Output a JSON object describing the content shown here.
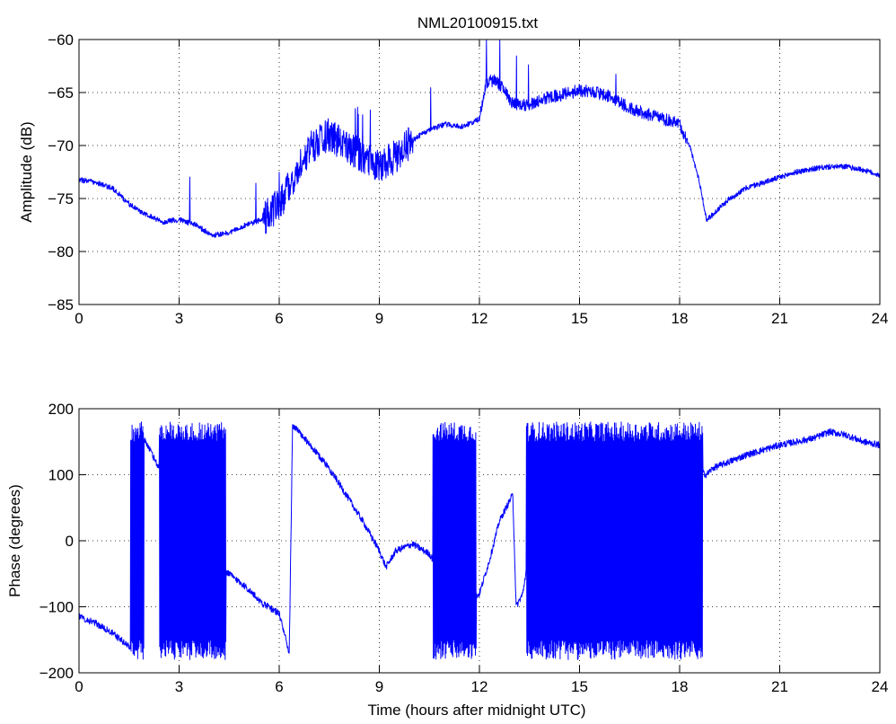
{
  "title": "NML20100915.txt",
  "colors": {
    "trace": "#0000ff",
    "axes": "#000000",
    "background": "#ffffff"
  },
  "chart_data": [
    {
      "type": "line",
      "title": "NML20100915.txt",
      "xlabel": "",
      "ylabel": "Amplitude (dB)",
      "xlim": [
        0,
        24
      ],
      "ylim": [
        -85,
        -60
      ],
      "xticks": [
        0,
        3,
        6,
        9,
        12,
        15,
        18,
        21,
        24
      ],
      "yticks": [
        -85,
        -80,
        -75,
        -70,
        -65,
        -60
      ],
      "xtick_labels": [
        "0",
        "3",
        "6",
        "9",
        "12",
        "15",
        "18",
        "21",
        "24"
      ],
      "ytick_labels": [
        "−85",
        "−80",
        "−75",
        "−70",
        "−65",
        "−60"
      ],
      "grid": true,
      "series": [
        {
          "color": "#0000ff",
          "x": [
            0,
            0.5,
            1,
            1.5,
            2,
            2.5,
            3,
            3.5,
            4,
            4.5,
            5,
            5.5,
            6,
            6.2,
            6.5,
            7,
            7.5,
            8,
            8.5,
            9,
            9.5,
            10,
            10.5,
            11,
            11.5,
            12,
            12.2,
            12.5,
            13,
            13.5,
            14,
            14.5,
            15,
            15.5,
            16,
            16.5,
            17,
            17.5,
            18,
            18.3,
            18.6,
            18.8,
            19,
            19.5,
            20,
            20.5,
            21,
            21.5,
            22,
            22.5,
            23,
            23.5,
            24
          ],
          "y": [
            -73.2,
            -73.5,
            -74,
            -75.5,
            -76.5,
            -77.2,
            -77,
            -77.5,
            -78.5,
            -78.2,
            -77.5,
            -77,
            -75.5,
            -74.5,
            -72.5,
            -70,
            -69,
            -70,
            -71,
            -72,
            -71,
            -69.5,
            -68.5,
            -68,
            -68.2,
            -67.5,
            -64,
            -63.8,
            -66,
            -66.2,
            -65.5,
            -65.2,
            -64.8,
            -65,
            -65.5,
            -66.5,
            -67,
            -67.5,
            -68,
            -70,
            -73.5,
            -77,
            -76.5,
            -75,
            -74,
            -73.5,
            -73,
            -72.5,
            -72.2,
            -72,
            -72,
            -72.3,
            -72.8
          ]
        }
      ]
    },
    {
      "type": "line",
      "title": "",
      "xlabel": "Time (hours after midnight UTC)",
      "ylabel": "Phase (degrees)",
      "xlim": [
        0,
        24
      ],
      "ylim": [
        -200,
        200
      ],
      "xticks": [
        0,
        3,
        6,
        9,
        12,
        15,
        18,
        21,
        24
      ],
      "yticks": [
        -200,
        -100,
        0,
        100,
        200
      ],
      "xtick_labels": [
        "0",
        "3",
        "6",
        "9",
        "12",
        "15",
        "18",
        "21",
        "24"
      ],
      "ytick_labels": [
        "−200",
        "−100",
        "0",
        "100",
        "200"
      ],
      "grid": true,
      "series": [
        {
          "color": "#0000ff",
          "x": [
            0,
            0.5,
            1,
            1.5,
            1.6,
            1.7,
            2,
            2.5,
            3,
            3.5,
            4,
            4.5,
            5,
            5.5,
            6,
            6.2,
            6.3,
            6.4,
            6.5,
            7,
            7.5,
            8,
            8.5,
            9,
            9.2,
            9.5,
            10,
            10.5,
            11,
            11.5,
            12,
            12.3,
            12.6,
            13,
            13.1,
            13.3,
            13.5,
            14,
            15,
            16,
            17,
            18,
            18.6,
            18.8,
            19,
            19.5,
            20,
            21,
            22,
            22.5,
            23,
            23.5,
            24
          ],
          "y": [
            -115,
            -125,
            -140,
            -160,
            -175,
            170,
            150,
            100,
            50,
            0,
            -30,
            -50,
            -70,
            -95,
            -110,
            -150,
            -175,
            175,
            170,
            140,
            110,
            70,
            30,
            -15,
            -40,
            -15,
            -5,
            -20,
            -60,
            -100,
            -80,
            -30,
            30,
            70,
            -100,
            -80,
            -10,
            60,
            90,
            100,
            100,
            100,
            105,
            100,
            110,
            120,
            130,
            145,
            155,
            165,
            160,
            150,
            145
          ]
        }
      ],
      "rapid_wrap_intervals": [
        [
          1.55,
          1.95
        ],
        [
          2.4,
          4.4
        ],
        [
          10.6,
          11.9
        ],
        [
          13.4,
          18.7
        ]
      ],
      "wrap_range": [
        -180,
        180
      ]
    }
  ]
}
